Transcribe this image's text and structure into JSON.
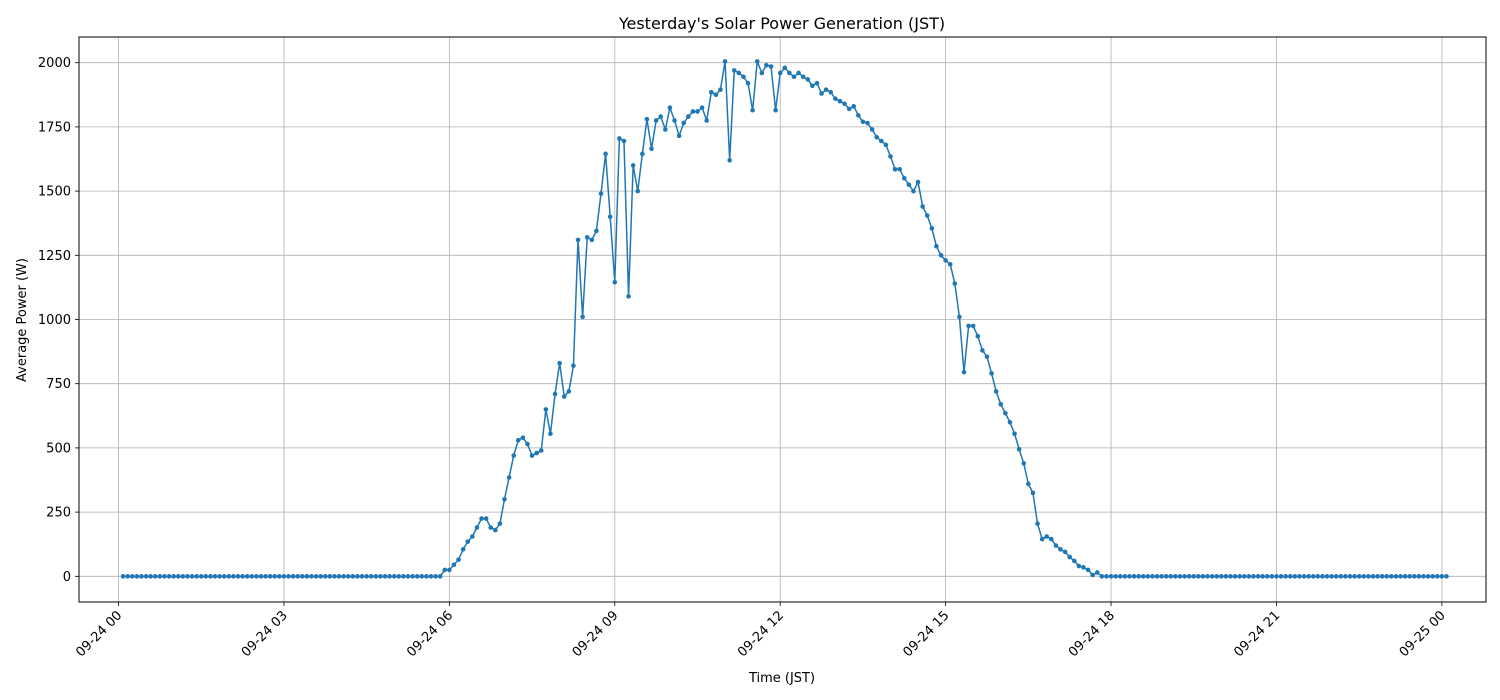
{
  "chart_data": {
    "type": "line",
    "title": "Yesterday's Solar Power Generation (JST)",
    "xlabel": "Time (JST)",
    "ylabel": "Average Power (W)",
    "x_start": "09-24 00:05",
    "x_step_minutes": 5,
    "xlim": [
      "09-23 23:17",
      "09-25 00:48"
    ],
    "ylim": [
      -100,
      2100
    ],
    "x_ticks": [
      "09-24 00",
      "09-24 03",
      "09-24 06",
      "09-24 09",
      "09-24 12",
      "09-24 15",
      "09-24 18",
      "09-24 21",
      "09-25 00"
    ],
    "y_ticks": [
      0,
      250,
      500,
      750,
      1000,
      1250,
      1500,
      1750,
      2000
    ],
    "grid": true,
    "color": "#1f77b4",
    "series": [
      {
        "values": [
          0,
          0,
          0,
          0,
          0,
          0,
          0,
          0,
          0,
          0,
          0,
          0,
          0,
          0,
          0,
          0,
          0,
          0,
          0,
          0,
          0,
          0,
          0,
          0,
          0,
          0,
          0,
          0,
          0,
          0,
          0,
          0,
          0,
          0,
          0,
          0,
          0,
          0,
          0,
          0,
          0,
          0,
          0,
          0,
          0,
          0,
          0,
          0,
          0,
          0,
          0,
          0,
          0,
          0,
          0,
          0,
          0,
          0,
          0,
          0,
          0,
          0,
          0,
          0,
          0,
          0,
          0,
          0,
          0,
          0,
          25,
          25,
          45,
          65,
          105,
          135,
          155,
          190,
          225,
          225,
          190,
          180,
          205,
          300,
          385,
          470,
          530,
          540,
          515,
          470,
          480,
          490,
          650,
          555,
          710,
          830,
          700,
          720,
          820,
          1310,
          1010,
          1320,
          1310,
          1345,
          1490,
          1645,
          1400,
          1145,
          1705,
          1695,
          1090,
          1600,
          1500,
          1645,
          1780,
          1665,
          1775,
          1790,
          1740,
          1825,
          1775,
          1715,
          1765,
          1790,
          1810,
          1810,
          1825,
          1775,
          1885,
          1875,
          1895,
          2005,
          1620,
          1970,
          1960,
          1945,
          1920,
          1815,
          2005,
          1960,
          1990,
          1985,
          1815,
          1960,
          1980,
          1960,
          1945,
          1960,
          1945,
          1935,
          1910,
          1920,
          1880,
          1895,
          1885,
          1860,
          1850,
          1840,
          1820,
          1830,
          1795,
          1770,
          1765,
          1740,
          1710,
          1695,
          1680,
          1635,
          1585,
          1585,
          1550,
          1525,
          1500,
          1535,
          1440,
          1405,
          1355,
          1285,
          1250,
          1230,
          1215,
          1140,
          1010,
          795,
          975,
          975,
          935,
          880,
          855,
          790,
          720,
          670,
          635,
          600,
          555,
          495,
          440,
          360,
          325,
          205,
          145,
          155,
          145,
          120,
          105,
          95,
          75,
          60,
          40,
          35,
          25,
          5,
          15,
          0,
          0,
          0,
          0,
          0,
          0,
          0,
          0,
          0,
          0,
          0,
          0,
          0,
          0,
          0,
          0,
          0,
          0,
          0,
          0,
          0,
          0,
          0,
          0,
          0,
          0,
          0,
          0,
          0,
          0,
          0,
          0,
          0,
          0,
          0,
          0,
          0,
          0,
          0,
          0,
          0,
          0,
          0,
          0,
          0,
          0,
          0,
          0,
          0,
          0,
          0,
          0,
          0,
          0,
          0,
          0,
          0,
          0,
          0,
          0,
          0,
          0,
          0,
          0,
          0,
          0,
          0,
          0,
          0,
          0,
          0,
          0,
          0,
          0,
          0,
          0
        ]
      }
    ]
  }
}
